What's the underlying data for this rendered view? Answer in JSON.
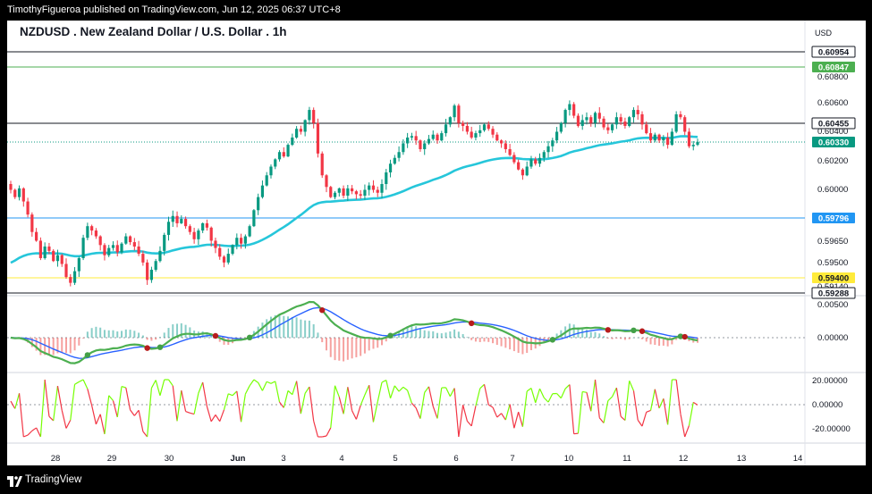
{
  "header": {
    "published_text": "TimothyFigueroa published on TradingView.com, Jun 12, 2025 06:37 UTC+8"
  },
  "footer": {
    "brand": "TradingView"
  },
  "chart_data": [
    {
      "type": "candlestick",
      "title": "NZDUSD . New Zealand Dollar / U.S. Dollar . 1h",
      "currency_label": "USD",
      "y_axis_ticks": [
        "0.60800",
        "0.60600",
        "0.60400",
        "0.60200",
        "0.60000",
        "0.59650",
        "0.59500",
        "0.59140",
        "0.00500"
      ],
      "x_axis_ticks": [
        "28",
        "29",
        "30",
        "Jun",
        "3",
        "4",
        "5",
        "6",
        "7",
        "10",
        "11",
        "12",
        "13",
        "14"
      ],
      "horizontal_levels": [
        {
          "label": "0.60954",
          "color": "#131722",
          "style": "line"
        },
        {
          "label": "0.60847",
          "color": "#4caf50",
          "style": "line"
        },
        {
          "label": "0.60455",
          "color": "#131722",
          "style": "line"
        },
        {
          "label": "0.60330",
          "color": "#089981",
          "style": "dotted"
        },
        {
          "label": "0.59796",
          "color": "#2196f3",
          "style": "line"
        },
        {
          "label": "0.59400",
          "color": "#ffeb3b",
          "style": "line"
        },
        {
          "label": "0.59288",
          "color": "#131722",
          "style": "line"
        }
      ],
      "moving_average_color": "#26c6da",
      "up_color": "#089981",
      "down_color": "#f23645",
      "closes": [
        0.6,
        0.5995,
        0.6001,
        0.5992,
        0.5983,
        0.5971,
        0.5965,
        0.5953,
        0.5961,
        0.5958,
        0.5951,
        0.5955,
        0.5949,
        0.594,
        0.5936,
        0.5944,
        0.5953,
        0.5967,
        0.5975,
        0.5972,
        0.5968,
        0.5962,
        0.5955,
        0.596,
        0.5962,
        0.5957,
        0.5963,
        0.5968,
        0.5964,
        0.5961,
        0.5956,
        0.595,
        0.5938,
        0.5945,
        0.5951,
        0.5958,
        0.5969,
        0.5978,
        0.5982,
        0.5977,
        0.598,
        0.5975,
        0.5971,
        0.5966,
        0.5972,
        0.5977,
        0.5974,
        0.5965,
        0.596,
        0.5954,
        0.595,
        0.5956,
        0.5962,
        0.5967,
        0.5963,
        0.5968,
        0.5975,
        0.5986,
        0.5995,
        0.6003,
        0.601,
        0.6016,
        0.6021,
        0.6026,
        0.6023,
        0.6031,
        0.6036,
        0.6042,
        0.604,
        0.6048,
        0.6055,
        0.6046,
        0.6025,
        0.601,
        0.6002,
        0.5995,
        0.5998,
        0.6001,
        0.5996,
        0.6001,
        0.5999,
        0.5997,
        0.5996,
        0.6,
        0.6003,
        0.6,
        0.5998,
        0.6004,
        0.6012,
        0.6018,
        0.6022,
        0.6026,
        0.6032,
        0.6036,
        0.6037,
        0.6034,
        0.6028,
        0.6032,
        0.6035,
        0.6038,
        0.6034,
        0.6039,
        0.6045,
        0.605,
        0.6058,
        0.6046,
        0.6044,
        0.604,
        0.6036,
        0.6039,
        0.6041,
        0.6045,
        0.6042,
        0.6038,
        0.6034,
        0.6032,
        0.6028,
        0.6024,
        0.6019,
        0.6014,
        0.601,
        0.6016,
        0.6021,
        0.6018,
        0.6022,
        0.6026,
        0.603,
        0.6034,
        0.604,
        0.6046,
        0.6055,
        0.6059,
        0.6051,
        0.6044,
        0.6048,
        0.605,
        0.6046,
        0.6053,
        0.6049,
        0.6043,
        0.6041,
        0.6045,
        0.605,
        0.6047,
        0.6044,
        0.605,
        0.6055,
        0.6052,
        0.6045,
        0.6039,
        0.6034,
        0.6038,
        0.6034,
        0.6036,
        0.6031,
        0.604,
        0.6052,
        0.605,
        0.604,
        0.603,
        0.6031,
        0.6033
      ],
      "oscillator_1": {
        "ticks": [
          "0.00500",
          "0.00000"
        ],
        "colors": [
          "#4caf50",
          "#b71c1c",
          "#2962ff"
        ]
      },
      "oscillator_2": {
        "ticks": [
          "20.00000",
          "0.00000",
          "-20.00000"
        ],
        "colors": [
          "#76ff03",
          "#f23645"
        ]
      }
    }
  ]
}
